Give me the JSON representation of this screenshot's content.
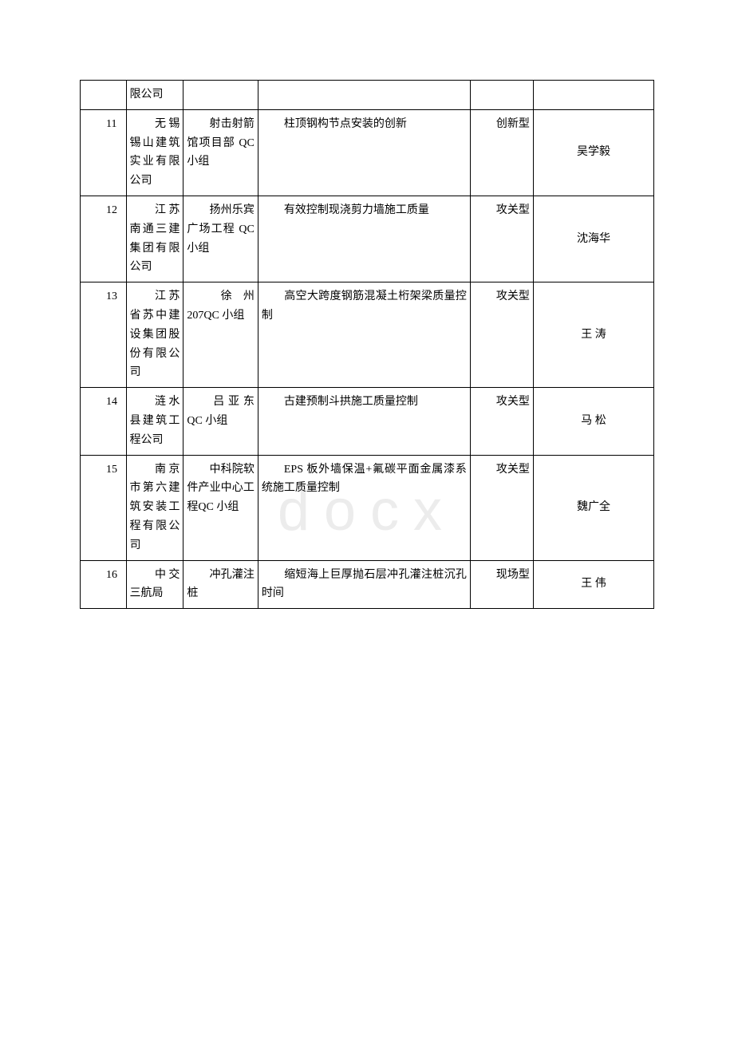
{
  "watermark_text": "docx",
  "table": {
    "columns": [
      {
        "key": "seq",
        "width": "8%",
        "align": "left"
      },
      {
        "key": "company",
        "width": "10%",
        "align": "left"
      },
      {
        "key": "group",
        "width": "13%",
        "align": "left"
      },
      {
        "key": "project",
        "width": "37%",
        "align": "left"
      },
      {
        "key": "type",
        "width": "11%",
        "align": "left"
      },
      {
        "key": "leader",
        "width": "21%",
        "align": "center"
      }
    ],
    "rows": [
      {
        "seq": "",
        "company": "限公司",
        "group": "",
        "project": "",
        "type": "",
        "leader": ""
      },
      {
        "seq": "11",
        "company": "无锡锡山建筑实业有限公司",
        "group": "射击射箭馆项目部 QC小组",
        "project": "柱顶钢构节点安装的创新",
        "type": "创新型",
        "leader": "吴学毅"
      },
      {
        "seq": "12",
        "company": "江苏南通三建集团有限公司",
        "group": "扬州乐宾广场工程 QC小组",
        "project": "有效控制现浇剪力墙施工质量",
        "type": "攻关型",
        "leader": "沈海华"
      },
      {
        "seq": "13",
        "company": "江苏省苏中建设集团股份有限公司",
        "group": "徐州207QC 小组",
        "project": "高空大跨度钢筋混凝土桁架梁质量控制",
        "type": "攻关型",
        "leader": "王 涛"
      },
      {
        "seq": "14",
        "company": "涟水县建筑工程公司",
        "group": "吕亚东QC 小组",
        "project": "古建预制斗拱施工质量控制",
        "type": "攻关型",
        "leader": "马 松"
      },
      {
        "seq": "15",
        "company": "南京市第六建筑安装工程有限公司",
        "group": "中科院软件产业中心工程QC 小组",
        "project": "EPS 板外墙保温+氟碳平面金属漆系统施工质量控制",
        "type": "攻关型",
        "leader": "魏广全"
      },
      {
        "seq": "16",
        "company": "中交三航局",
        "group": "冲孔灌注桩",
        "project": "缩短海上巨厚抛石层冲孔灌注桩沉孔时间",
        "type": "现场型",
        "leader": "王 伟"
      }
    ],
    "border_color": "#000000",
    "background_color": "#ffffff",
    "font_size": 14,
    "font_family": "SimSun"
  }
}
